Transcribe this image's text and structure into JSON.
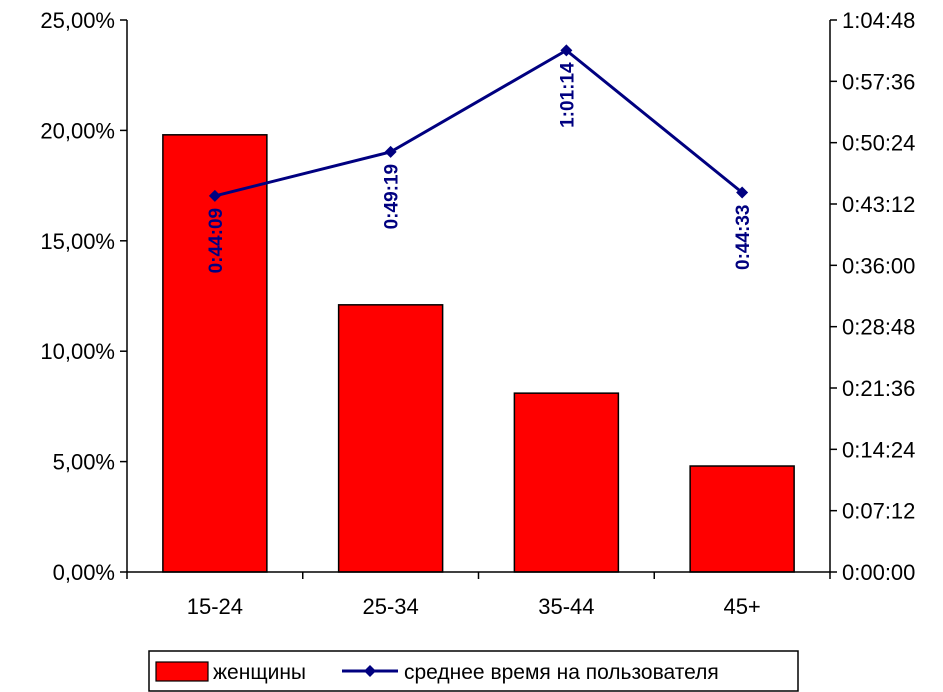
{
  "chart_data": {
    "type": "bar",
    "categories": [
      "15-24",
      "25-34",
      "35-44",
      "45+"
    ],
    "series": [
      {
        "name": "женщины",
        "type": "bar",
        "axis": "left",
        "values": [
          19.8,
          12.1,
          8.1,
          4.8
        ],
        "color": "#ff0000"
      },
      {
        "name": "среднее время на пользователя",
        "type": "line",
        "axis": "right",
        "values": [
          "0:44:09",
          "0:49:19",
          "1:01:14",
          "0:44:33"
        ],
        "data_labels": [
          "0:44:09",
          "0:49:19",
          "1:01:14",
          "0:44:33"
        ],
        "color": "#000080"
      }
    ],
    "y_left": {
      "ylim": [
        0,
        25
      ],
      "ticks": [
        0,
        5,
        10,
        15,
        20,
        25
      ],
      "tick_labels": [
        "0,00%",
        "5,00%",
        "10,00%",
        "15,00%",
        "20,00%",
        "25,00%"
      ]
    },
    "y_right": {
      "ylim": [
        "0:00:00",
        "1:04:48"
      ],
      "ticks": [
        "0:00:00",
        "0:07:12",
        "0:14:24",
        "0:21:36",
        "0:28:48",
        "0:36:00",
        "0:43:12",
        "0:50:24",
        "0:57:36",
        "1:04:48"
      ],
      "tick_labels": [
        "0:00:00",
        "0:07:12",
        "0:14:24",
        "0:21:36",
        "0:28:48",
        "0:36:00",
        "0:43:12",
        "0:50:24",
        "0:57:36",
        "1:04:48"
      ]
    },
    "grid": false,
    "legend": {
      "position": "bottom",
      "entries": [
        "женщины",
        "среднее время на пользователя"
      ]
    }
  }
}
